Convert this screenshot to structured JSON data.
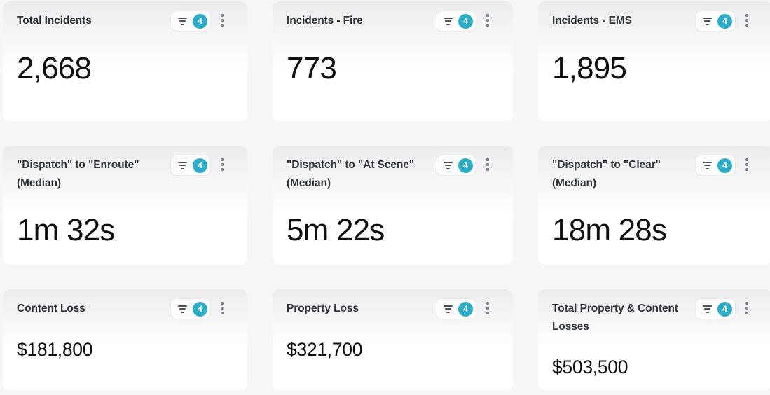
{
  "colors": {
    "badge_background": "#2BADC9",
    "badge_text": "#FFFFFF",
    "page_background": "#F6F6F7"
  },
  "icons": {
    "filter": "filter-lines-icon",
    "menu": "kebab-menu-icon"
  },
  "cards": [
    {
      "title": "Total Incidents",
      "value": "2,668",
      "filter_count": "4",
      "size": "lg"
    },
    {
      "title": "Incidents - Fire",
      "value": "773",
      "filter_count": "4",
      "size": "lg"
    },
    {
      "title": "Incidents - EMS",
      "value": "1,895",
      "filter_count": "4",
      "size": "lg"
    },
    {
      "title": "\"Dispatch\" to \"Enroute\" (Median)",
      "value": "1m 32s",
      "filter_count": "4",
      "size": "lg"
    },
    {
      "title": "\"Dispatch\" to \"At Scene\" (Median)",
      "value": "5m 22s",
      "filter_count": "4",
      "size": "lg"
    },
    {
      "title": "\"Dispatch\" to \"Clear\" (Median)",
      "value": "18m 28s",
      "filter_count": "4",
      "size": "lg"
    },
    {
      "title": "Content Loss",
      "value": "$181,800",
      "filter_count": "4",
      "size": "sm"
    },
    {
      "title": "Property Loss",
      "value": "$321,700",
      "filter_count": "4",
      "size": "sm"
    },
    {
      "title": "Total Property & Content Losses",
      "value": "$503,500",
      "filter_count": "4",
      "size": "sm"
    }
  ]
}
